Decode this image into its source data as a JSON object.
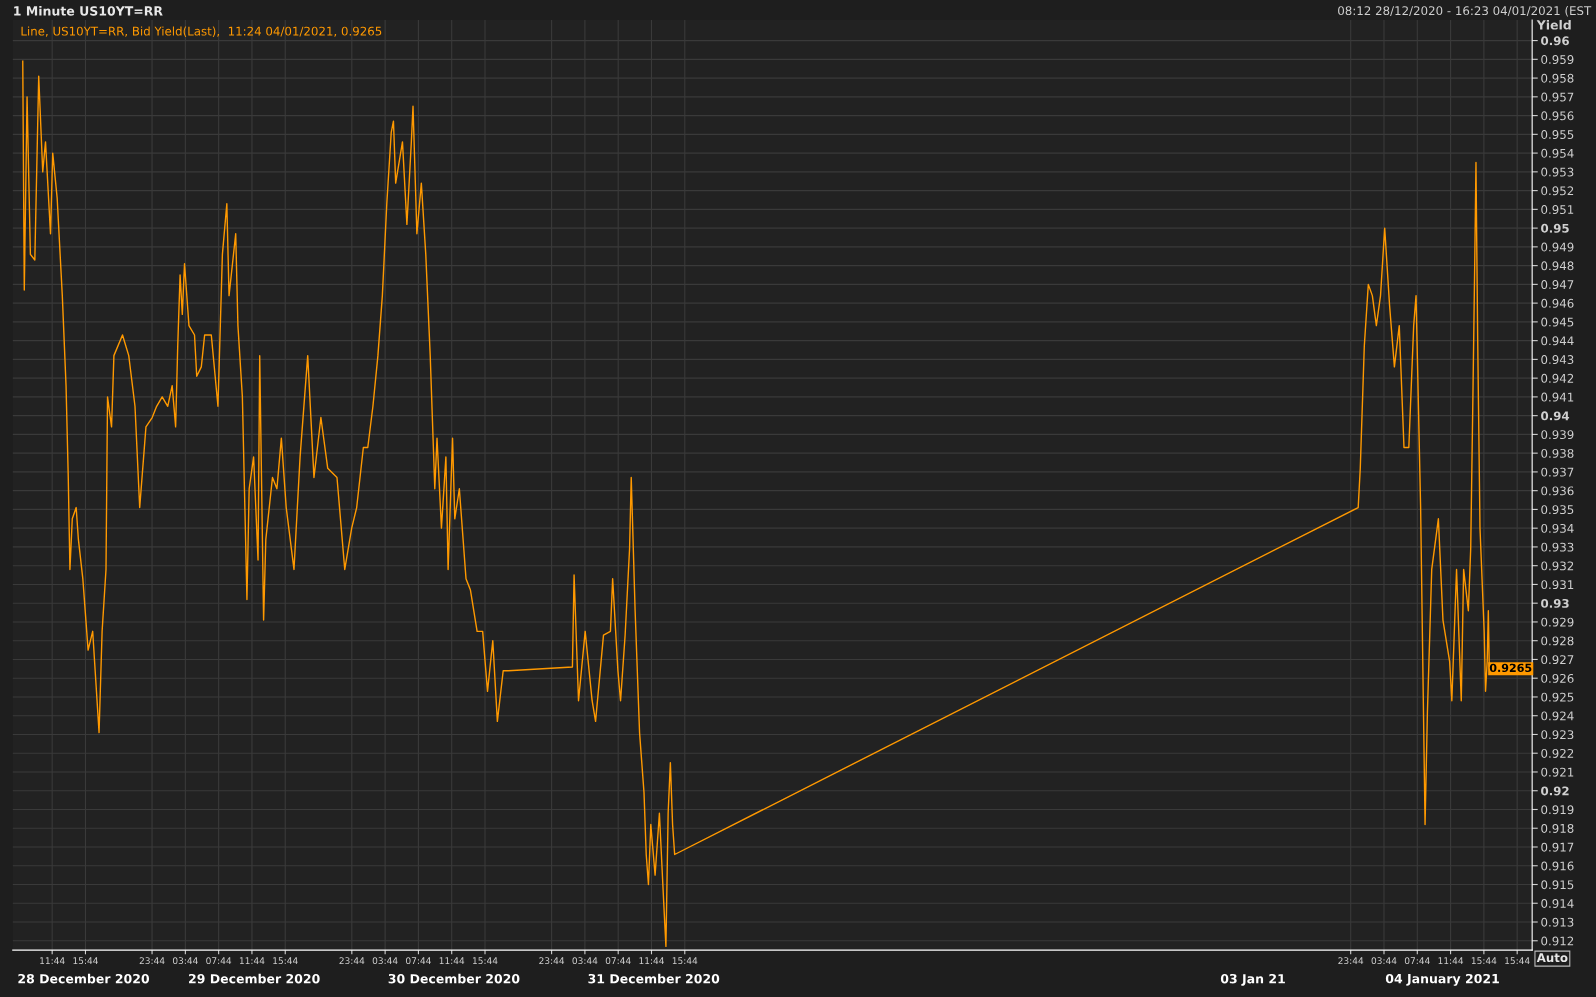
{
  "chart_data": {
    "type": "line",
    "title": "1 Minute US10YT=RR",
    "subtitle": "Line, US10YT=RR, Bid Yield(Last),  11:24 04/01/2021, 0.9265",
    "ylabel": "Yield",
    "series": [
      {
        "color": "#ff9900",
        "x": [
          "2020-12-28T08:12",
          "2020-12-28T08:23",
          "2020-12-28T08:43",
          "2020-12-28T09:07",
          "2020-12-28T09:39",
          "2020-12-28T10:07",
          "2020-12-28T10:36",
          "2020-12-28T10:56",
          "2020-12-28T11:32",
          "2020-12-28T11:48",
          "2020-12-28T12:20",
          "2020-12-28T12:57",
          "2020-12-28T13:24",
          "2020-12-28T13:40",
          "2020-12-28T13:52",
          "2020-12-28T14:09",
          "2020-12-28T14:37",
          "2020-12-28T14:53",
          "2020-12-28T15:25",
          "2020-12-28T16:03",
          "2020-12-28T16:36",
          "2020-12-28T17:22",
          "2020-12-28T17:44",
          "2020-12-28T18:12",
          "2020-12-28T18:23",
          "2020-12-28T18:52",
          "2020-12-28T19:09",
          "2020-12-28T20:11",
          "2020-12-28T20:56",
          "2020-12-28T21:41",
          "2020-12-28T22:15",
          "2020-12-28T23:00",
          "2020-12-28T23:45",
          "2020-12-29T00:17",
          "2020-12-29T00:57",
          "2020-12-29T01:37",
          "2020-12-29T02:09",
          "2020-12-29T02:34",
          "2020-12-29T02:49",
          "2020-12-29T03:06",
          "2020-12-29T03:22",
          "2020-12-29T03:38",
          "2020-12-29T04:10",
          "2020-12-29T04:50",
          "2020-12-29T05:06",
          "2020-12-29T05:39",
          "2020-12-29T06:03",
          "2020-12-29T06:51",
          "2020-12-29T07:39",
          "2020-12-29T08:11",
          "2020-12-29T08:43",
          "2020-12-29T08:59",
          "2020-12-29T09:47",
          "2020-12-29T10:03",
          "2020-12-29T10:35",
          "2020-12-29T11:08",
          "2020-12-29T11:24",
          "2020-12-29T11:56",
          "2020-12-29T12:28",
          "2020-12-29T12:40",
          "2020-12-29T13:08",
          "2020-12-29T13:24",
          "2020-12-29T14:12",
          "2020-12-29T14:44",
          "2020-12-29T15:16",
          "2020-12-29T15:51",
          "2020-12-29T16:47",
          "2020-12-29T17:31",
          "2020-12-29T18:26",
          "2020-12-29T19:11",
          "2020-12-29T20:01",
          "2020-12-29T20:50",
          "2020-12-29T21:57",
          "2020-12-29T22:53",
          "2020-12-29T23:43",
          "2020-12-30T00:19",
          "2020-12-30T01:07",
          "2020-12-30T01:39",
          "2020-12-30T02:16",
          "2020-12-30T02:52",
          "2020-12-30T03:24",
          "2020-12-30T03:56",
          "2020-12-30T04:28",
          "2020-12-30T04:44",
          "2020-12-30T05:00",
          "2020-12-30T05:49",
          "2020-12-30T06:21",
          "2020-12-30T06:53",
          "2020-12-30T07:05",
          "2020-12-30T07:33",
          "2020-12-30T08:05",
          "2020-12-30T08:37",
          "2020-12-30T09:09",
          "2020-12-30T09:42",
          "2020-12-30T09:58",
          "2020-12-30T10:30",
          "2020-12-30T11:02",
          "2020-12-30T11:18",
          "2020-12-30T11:50",
          "2020-12-30T12:06",
          "2020-12-30T12:39",
          "2020-12-30T13:27",
          "2020-12-30T13:59",
          "2020-12-30T14:47",
          "2020-12-30T15:27",
          "2020-12-30T16:02",
          "2020-12-30T16:40",
          "2020-12-30T17:13",
          "2020-12-30T17:55",
          "2020-12-30T18:33",
          "2020-12-31T02:14",
          "2020-12-31T02:26",
          "2020-12-31T02:58",
          "2020-12-31T03:46",
          "2020-12-31T04:36",
          "2020-12-31T05:01",
          "2020-12-31T05:58",
          "2020-12-31T06:48",
          "2020-12-31T07:04",
          "2020-12-31T07:42",
          "2020-12-31T08:01",
          "2020-12-31T08:34",
          "2020-12-31T09:06",
          "2020-12-31T09:18",
          "2020-12-31T09:46",
          "2020-12-31T10:18",
          "2020-12-31T10:50",
          "2020-12-31T11:06",
          "2020-12-31T11:22",
          "2020-12-31T11:39",
          "2020-12-31T12:10",
          "2020-12-31T12:41",
          "2020-12-31T13:13",
          "2020-12-31T13:28",
          "2020-12-31T13:44",
          "2020-12-31T14:00",
          "2020-12-31T14:16",
          "2020-12-31T14:31",
          "2021-01-04T00:38",
          "2021-01-04T00:53",
          "2021-01-04T01:22",
          "2021-01-04T01:51",
          "2021-01-04T02:20",
          "2021-01-04T02:49",
          "2021-01-04T03:19",
          "2021-01-04T03:49",
          "2021-01-04T04:24",
          "2021-01-04T04:59",
          "2021-01-04T05:34",
          "2021-01-04T06:08",
          "2021-01-04T06:43",
          "2021-01-04T07:18",
          "2021-01-04T07:35",
          "2021-01-04T08:08",
          "2021-01-04T08:40",
          "2021-01-04T08:57",
          "2021-01-04T09:28",
          "2021-01-04T10:16",
          "2021-01-04T10:49",
          "2021-01-04T11:37",
          "2021-01-04T11:53",
          "2021-01-04T12:27",
          "2021-01-04T13:01",
          "2021-01-04T13:18",
          "2021-01-04T13:52",
          "2021-01-04T14:09",
          "2021-01-04T14:26",
          "2021-01-04T14:38",
          "2021-01-04T14:47",
          "2021-01-04T14:59",
          "2021-01-04T15:16",
          "2021-01-04T15:46",
          "2021-01-04T15:56",
          "2021-01-04T16:08",
          "2021-01-04T16:16",
          "2021-01-04T16:23"
        ],
        "values": [
          0.9589,
          0.9467,
          0.957,
          0.9486,
          0.9483,
          0.9581,
          0.953,
          0.9546,
          0.9497,
          0.954,
          0.9516,
          0.9464,
          0.9416,
          0.9367,
          0.9318,
          0.9345,
          0.9351,
          0.9334,
          0.9313,
          0.9275,
          0.9285,
          0.9231,
          0.9285,
          0.9318,
          0.941,
          0.9394,
          0.9432,
          0.9443,
          0.9432,
          0.9405,
          0.9351,
          0.9394,
          0.9399,
          0.9405,
          0.941,
          0.9405,
          0.9416,
          0.9394,
          0.9437,
          0.9475,
          0.9454,
          0.9481,
          0.9448,
          0.9443,
          0.9421,
          0.9426,
          0.9443,
          0.9443,
          0.9405,
          0.9486,
          0.9513,
          0.9464,
          0.9497,
          0.9448,
          0.941,
          0.9302,
          0.9361,
          0.9378,
          0.9323,
          0.9432,
          0.9291,
          0.9334,
          0.9367,
          0.9361,
          0.9388,
          0.9351,
          0.9318,
          0.9378,
          0.9432,
          0.9367,
          0.9399,
          0.9372,
          0.9367,
          0.9318,
          0.934,
          0.9351,
          0.9383,
          0.9383,
          0.9405,
          0.9432,
          0.9464,
          0.9513,
          0.9551,
          0.9557,
          0.9524,
          0.9546,
          0.9502,
          0.9546,
          0.9565,
          0.9497,
          0.9524,
          0.9486,
          0.9432,
          0.9361,
          0.9388,
          0.934,
          0.9378,
          0.9318,
          0.9388,
          0.9345,
          0.9361,
          0.9313,
          0.9307,
          0.9285,
          0.9285,
          0.9253,
          0.928,
          0.9237,
          0.9264,
          0.9264,
          0.9266,
          0.9315,
          0.9248,
          0.9285,
          0.9248,
          0.9237,
          0.9283,
          0.9285,
          0.9313,
          0.9264,
          0.9248,
          0.9283,
          0.9329,
          0.9367,
          0.9296,
          0.9231,
          0.9199,
          0.9166,
          0.915,
          0.9182,
          0.9155,
          0.9188,
          0.9139,
          0.9117,
          0.9188,
          0.9215,
          0.9182,
          0.9166,
          0.9351,
          0.9372,
          0.9437,
          0.947,
          0.9464,
          0.9448,
          0.9464,
          0.95,
          0.9459,
          0.9426,
          0.9448,
          0.9383,
          0.9383,
          0.9448,
          0.9464,
          0.9351,
          0.9182,
          0.9242,
          0.9318,
          0.9345,
          0.9291,
          0.9269,
          0.9248,
          0.9318,
          0.9248,
          0.9318,
          0.9296,
          0.9329,
          0.9416,
          0.9481,
          0.9535,
          0.9443,
          0.934,
          0.9285,
          0.9253,
          0.9269,
          0.9296,
          0.9265
        ]
      }
    ],
    "xlim": [
      "2020-12-28T07:00",
      "2021-01-04T21:32"
    ],
    "ylim": [
      0.9115,
      0.9611
    ],
    "xticks": [
      {
        "value": "2020-12-28T11:44",
        "label": "11:44"
      },
      {
        "value": "2020-12-28T15:44",
        "label": "15:44"
      },
      {
        "value": "2020-12-28T23:44",
        "label": "23:44"
      },
      {
        "value": "2020-12-29T03:44",
        "label": "03:44"
      },
      {
        "value": "2020-12-29T07:44",
        "label": "07:44"
      },
      {
        "value": "2020-12-29T11:44",
        "label": "11:44"
      },
      {
        "value": "2020-12-29T15:44",
        "label": "15:44"
      },
      {
        "value": "2020-12-29T23:44",
        "label": "23:44"
      },
      {
        "value": "2020-12-30T03:44",
        "label": "03:44"
      },
      {
        "value": "2020-12-30T07:44",
        "label": "07:44"
      },
      {
        "value": "2020-12-30T11:44",
        "label": "11:44"
      },
      {
        "value": "2020-12-30T15:44",
        "label": "15:44"
      },
      {
        "value": "2020-12-30T23:44",
        "label": "23:44"
      },
      {
        "value": "2020-12-31T03:44",
        "label": "03:44"
      },
      {
        "value": "2020-12-31T07:44",
        "label": "07:44"
      },
      {
        "value": "2020-12-31T11:44",
        "label": "11:44"
      },
      {
        "value": "2020-12-31T15:44",
        "label": "15:44"
      },
      {
        "value": "2021-01-03T23:44",
        "label": "23:44"
      },
      {
        "value": "2021-01-04T03:44",
        "label": "03:44"
      },
      {
        "value": "2021-01-04T07:44",
        "label": "07:44"
      },
      {
        "value": "2021-01-04T11:44",
        "label": "11:44"
      },
      {
        "value": "2021-01-04T15:44",
        "label": "15:44"
      },
      {
        "value": "2021-01-04T19:44",
        "label": "15:44"
      }
    ],
    "yticks": [
      0.912,
      0.913,
      0.914,
      0.915,
      0.916,
      0.917,
      0.918,
      0.919,
      0.92,
      0.921,
      0.922,
      0.923,
      0.924,
      0.925,
      0.926,
      0.927,
      0.928,
      0.929,
      0.93,
      0.931,
      0.932,
      0.933,
      0.934,
      0.935,
      0.936,
      0.937,
      0.938,
      0.939,
      0.94,
      0.941,
      0.942,
      0.943,
      0.944,
      0.945,
      0.946,
      0.947,
      0.948,
      0.949,
      0.95,
      0.951,
      0.952,
      0.953,
      0.954,
      0.955,
      0.956,
      0.957,
      0.958,
      0.959,
      0.96
    ],
    "grid": true,
    "annotations": [
      "08:12 28/12/2020 - 16:23 04/01/2021 (EST",
      "Auto",
      {
        "text": "0.9265",
        "x": "2021-01-04T16:23",
        "y": 0.9265
      },
      "28 December 2020",
      "29 December 2020",
      "30 December 2020",
      "31 December 2020",
      "03 Jan 21",
      "04 January 2021"
    ]
  }
}
